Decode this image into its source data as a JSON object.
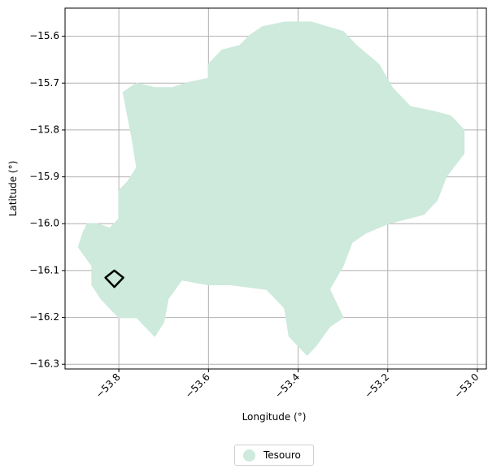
{
  "chart_data": {
    "type": "map",
    "xlabel": "Longitude (°)",
    "ylabel": "Latitude (°)",
    "xlim": [
      -53.92,
      -52.98
    ],
    "ylim": [
      -16.31,
      -15.54
    ],
    "grid": true,
    "x_ticks": [
      -53.8,
      -53.6,
      -53.4,
      -53.2,
      -53.0
    ],
    "y_ticks": [
      -15.6,
      -15.7,
      -15.8,
      -15.9,
      -16.0,
      -16.1,
      -16.2,
      -16.3
    ],
    "x_tick_labels": [
      "−53.8",
      "−53.6",
      "−53.4",
      "−53.2",
      "−53.0"
    ],
    "y_tick_labels": [
      "−15.6",
      "−15.7",
      "−15.8",
      "−15.9",
      "−16.0",
      "−16.1",
      "−16.2",
      "−16.3"
    ],
    "legend_position": "bottom-center",
    "regions": [
      {
        "name": "Tesouro",
        "color": "#cdeadc",
        "polygon": [
          [
            -53.87,
            -16.0
          ],
          [
            -53.85,
            -16.0
          ],
          [
            -53.82,
            -16.01
          ],
          [
            -53.81,
            -16.0
          ],
          [
            -53.8,
            -15.99
          ],
          [
            -53.8,
            -15.93
          ],
          [
            -53.78,
            -15.91
          ],
          [
            -53.76,
            -15.88
          ],
          [
            -53.77,
            -15.82
          ],
          [
            -53.78,
            -15.77
          ],
          [
            -53.79,
            -15.72
          ],
          [
            -53.76,
            -15.7
          ],
          [
            -53.72,
            -15.71
          ],
          [
            -53.68,
            -15.71
          ],
          [
            -53.65,
            -15.7
          ],
          [
            -53.6,
            -15.69
          ],
          [
            -53.6,
            -15.66
          ],
          [
            -53.57,
            -15.63
          ],
          [
            -53.53,
            -15.62
          ],
          [
            -53.51,
            -15.6
          ],
          [
            -53.48,
            -15.58
          ],
          [
            -53.43,
            -15.57
          ],
          [
            -53.37,
            -15.57
          ],
          [
            -53.3,
            -15.59
          ],
          [
            -53.27,
            -15.62
          ],
          [
            -53.22,
            -15.66
          ],
          [
            -53.19,
            -15.71
          ],
          [
            -53.15,
            -15.75
          ],
          [
            -53.1,
            -15.76
          ],
          [
            -53.06,
            -15.77
          ],
          [
            -53.03,
            -15.8
          ],
          [
            -53.03,
            -15.85
          ],
          [
            -53.07,
            -15.9
          ],
          [
            -53.09,
            -15.95
          ],
          [
            -53.12,
            -15.98
          ],
          [
            -53.2,
            -16.0
          ],
          [
            -53.25,
            -16.02
          ],
          [
            -53.28,
            -16.04
          ],
          [
            -53.3,
            -16.09
          ],
          [
            -53.33,
            -16.14
          ],
          [
            -53.3,
            -16.2
          ],
          [
            -53.33,
            -16.22
          ],
          [
            -53.36,
            -16.26
          ],
          [
            -53.38,
            -16.28
          ],
          [
            -53.42,
            -16.24
          ],
          [
            -53.43,
            -16.18
          ],
          [
            -53.47,
            -16.14
          ],
          [
            -53.55,
            -16.13
          ],
          [
            -53.6,
            -16.13
          ],
          [
            -53.66,
            -16.12
          ],
          [
            -53.69,
            -16.16
          ],
          [
            -53.7,
            -16.21
          ],
          [
            -53.72,
            -16.24
          ],
          [
            -53.76,
            -16.2
          ],
          [
            -53.8,
            -16.2
          ],
          [
            -53.84,
            -16.16
          ],
          [
            -53.86,
            -16.13
          ],
          [
            -53.86,
            -16.09
          ],
          [
            -53.89,
            -16.05
          ],
          [
            -53.88,
            -16.02
          ]
        ]
      }
    ],
    "outline_shapes": [
      {
        "name": "highlighted-area",
        "color": "#000000",
        "polygon": [
          [
            -53.81,
            -16.1
          ],
          [
            -53.79,
            -16.115
          ],
          [
            -53.81,
            -16.135
          ],
          [
            -53.83,
            -16.115
          ]
        ]
      }
    ]
  },
  "legend": {
    "label": "Tesouro",
    "color": "#cdeadc"
  }
}
